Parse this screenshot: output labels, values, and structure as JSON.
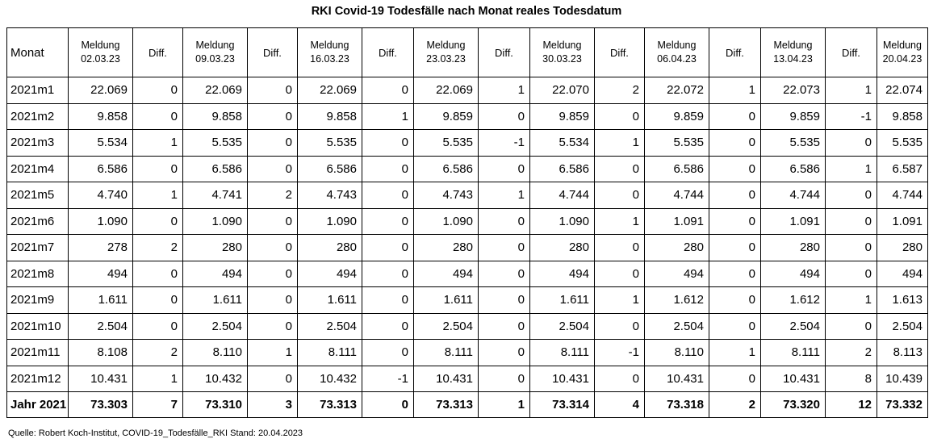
{
  "title": "RKI Covid-19 Todesfälle nach Monat reales Todesdatum",
  "source": "Quelle: Robert Koch-Institut, COVID-19_Todesfälle_RKI Stand: 20.04.2023",
  "header": {
    "monat": "Monat",
    "meldung_label": "Meldung",
    "diff_label": "Diff.",
    "dates": [
      "02.03.23",
      "09.03.23",
      "16.03.23",
      "23.03.23",
      "30.03.23",
      "06.04.23",
      "13.04.23",
      "20.04.23"
    ]
  },
  "rows": [
    {
      "month": "2021m1",
      "cells": [
        "22.069",
        "0",
        "22.069",
        "0",
        "22.069",
        "0",
        "22.069",
        "1",
        "22.070",
        "2",
        "22.072",
        "1",
        "22.073",
        "1",
        "22.074"
      ]
    },
    {
      "month": "2021m2",
      "cells": [
        "9.858",
        "0",
        "9.858",
        "0",
        "9.858",
        "1",
        "9.859",
        "0",
        "9.859",
        "0",
        "9.859",
        "0",
        "9.859",
        "-1",
        "9.858"
      ]
    },
    {
      "month": "2021m3",
      "cells": [
        "5.534",
        "1",
        "5.535",
        "0",
        "5.535",
        "0",
        "5.535",
        "-1",
        "5.534",
        "1",
        "5.535",
        "0",
        "5.535",
        "0",
        "5.535"
      ]
    },
    {
      "month": "2021m4",
      "cells": [
        "6.586",
        "0",
        "6.586",
        "0",
        "6.586",
        "0",
        "6.586",
        "0",
        "6.586",
        "0",
        "6.586",
        "0",
        "6.586",
        "1",
        "6.587"
      ]
    },
    {
      "month": "2021m5",
      "cells": [
        "4.740",
        "1",
        "4.741",
        "2",
        "4.743",
        "0",
        "4.743",
        "1",
        "4.744",
        "0",
        "4.744",
        "0",
        "4.744",
        "0",
        "4.744"
      ]
    },
    {
      "month": "2021m6",
      "cells": [
        "1.090",
        "0",
        "1.090",
        "0",
        "1.090",
        "0",
        "1.090",
        "0",
        "1.090",
        "1",
        "1.091",
        "0",
        "1.091",
        "0",
        "1.091"
      ]
    },
    {
      "month": "2021m7",
      "cells": [
        "278",
        "2",
        "280",
        "0",
        "280",
        "0",
        "280",
        "0",
        "280",
        "0",
        "280",
        "0",
        "280",
        "0",
        "280"
      ]
    },
    {
      "month": "2021m8",
      "cells": [
        "494",
        "0",
        "494",
        "0",
        "494",
        "0",
        "494",
        "0",
        "494",
        "0",
        "494",
        "0",
        "494",
        "0",
        "494"
      ]
    },
    {
      "month": "2021m9",
      "cells": [
        "1.611",
        "0",
        "1.611",
        "0",
        "1.611",
        "0",
        "1.611",
        "0",
        "1.611",
        "1",
        "1.612",
        "0",
        "1.612",
        "1",
        "1.613"
      ]
    },
    {
      "month": "2021m10",
      "cells": [
        "2.504",
        "0",
        "2.504",
        "0",
        "2.504",
        "0",
        "2.504",
        "0",
        "2.504",
        "0",
        "2.504",
        "0",
        "2.504",
        "0",
        "2.504"
      ]
    },
    {
      "month": "2021m11",
      "cells": [
        "8.108",
        "2",
        "8.110",
        "1",
        "8.111",
        "0",
        "8.111",
        "0",
        "8.111",
        "-1",
        "8.110",
        "1",
        "8.111",
        "2",
        "8.113"
      ]
    },
    {
      "month": "2021m12",
      "cells": [
        "10.431",
        "1",
        "10.432",
        "0",
        "10.432",
        "-1",
        "10.431",
        "0",
        "10.431",
        "0",
        "10.431",
        "0",
        "10.431",
        "8",
        "10.439"
      ]
    }
  ],
  "total": {
    "month": "Jahr 2021",
    "cells": [
      "73.303",
      "7",
      "73.310",
      "3",
      "73.313",
      "0",
      "73.313",
      "1",
      "73.314",
      "4",
      "73.318",
      "2",
      "73.320",
      "12",
      "73.332"
    ]
  }
}
